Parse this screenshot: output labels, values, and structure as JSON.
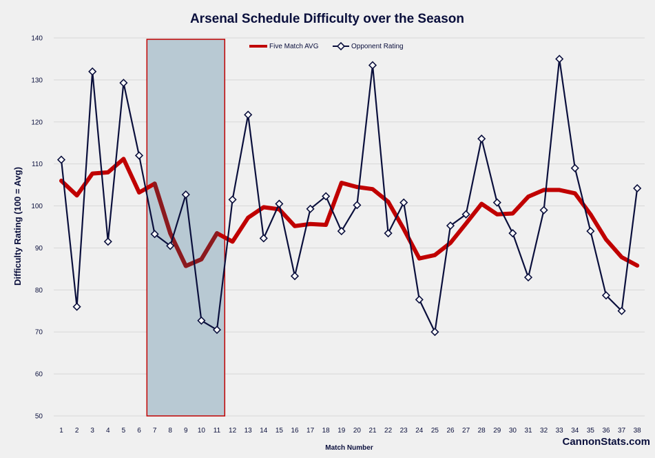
{
  "chart_data": {
    "type": "line",
    "title": "Arsenal Schedule Difficulty over the Season",
    "xlabel": "Match Number",
    "ylabel": "Difficulty Rating (100 = Avg)",
    "ylim": [
      50,
      140
    ],
    "yticks": [
      50,
      60,
      70,
      80,
      90,
      100,
      110,
      120,
      130,
      140
    ],
    "grid": "horizontal",
    "legend_position": "top-center",
    "x": [
      1,
      2,
      3,
      4,
      5,
      6,
      7,
      8,
      9,
      10,
      11,
      12,
      13,
      14,
      15,
      16,
      17,
      18,
      19,
      20,
      21,
      22,
      23,
      24,
      25,
      26,
      27,
      28,
      29,
      30,
      31,
      32,
      33,
      34,
      35,
      36,
      37,
      38
    ],
    "x_labels": [
      "1",
      "2",
      "3",
      "4",
      "5",
      "6",
      "7",
      "8",
      "9",
      "10",
      "11",
      "12",
      "13",
      "14",
      "15",
      "16",
      "17",
      "18",
      "19",
      "20",
      "21",
      "22",
      "23",
      "24",
      "25",
      "26",
      "27",
      "28",
      "29",
      "30",
      "31",
      "32",
      "33",
      "34",
      "35",
      "36",
      "37",
      "38"
    ],
    "highlight_region": {
      "x_start": 7,
      "x_end": 11,
      "y_start": 50,
      "y_end": 140,
      "fill": "#b8c9d3",
      "stroke": "#c00000"
    },
    "series": [
      {
        "name": "Five Match AVG",
        "color": "#c00000",
        "overlap_color": "#8b1a1f",
        "values": [
          106,
          102.5,
          107.7,
          108,
          111.2,
          103.2,
          105.3,
          93.5,
          85.7,
          87.3,
          93.5,
          91.5,
          97.2,
          99.7,
          99.2,
          95.2,
          95.7,
          95.5,
          105.5,
          104.5,
          104,
          101,
          94.5,
          87.5,
          88.3,
          91.2,
          95.8,
          100.5,
          98,
          98.2,
          102.2,
          103.8,
          103.8,
          103,
          98,
          92,
          87.8,
          85.8
        ]
      },
      {
        "name": "Opponent Rating",
        "color": "#0a0f3c",
        "values": [
          111,
          76,
          132,
          91.5,
          129.3,
          112,
          93.3,
          90.5,
          102.7,
          72.7,
          70.5,
          101.5,
          121.7,
          92.3,
          100.5,
          83.3,
          99.3,
          102.3,
          94,
          100.2,
          133.5,
          93.5,
          100.8,
          77.7,
          70,
          95.3,
          98,
          116,
          100.8,
          93.5,
          83,
          99,
          135,
          109,
          94,
          78.7,
          75,
          104.2
        ]
      }
    ]
  },
  "branding": {
    "watermark": "CannonStats.com"
  }
}
